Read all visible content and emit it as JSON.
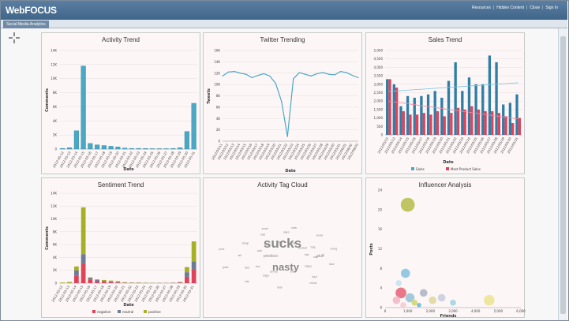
{
  "app": {
    "logo": "WebFOCUS",
    "tab": "Social Media Analytics",
    "links": [
      "Resources",
      "Hidden Content",
      "Close",
      "Sign In"
    ]
  },
  "colors": {
    "teal": "#4aa8c5",
    "blue": "#2f7ea6",
    "red": "#e0425a",
    "olive": "#a5b024",
    "slate": "#6d7b95",
    "header": "#4a6f93"
  },
  "panels": {
    "activity": {
      "title": "Activity Trend"
    },
    "twitter": {
      "title": "Twitter Trending"
    },
    "sales": {
      "title": "Sales Trend"
    },
    "sentiment": {
      "title": "Sentiment Trend"
    },
    "tagcloud": {
      "title": "Activity Tag Cloud"
    },
    "influencer": {
      "title": "Influencer Analysis"
    }
  },
  "chart_data": [
    {
      "id": "activity",
      "type": "bar",
      "title": "Activity Trend",
      "xlabel": "Date",
      "ylabel": "Comments",
      "ylim": [
        0,
        14000
      ],
      "yticks": [
        "0",
        "2K",
        "4K",
        "6K",
        "8K",
        "10K",
        "12K",
        "14K"
      ],
      "categories": [
        "2012-05-12",
        "2012-05-13",
        "2012-05-14",
        "2012-05-15",
        "2012-05-16",
        "2012-05-17",
        "2012-05-18",
        "2012-05-19",
        "2012-05-20",
        "2012-05-21",
        "2012-05-22",
        "2012-05-23",
        "2012-05-24",
        "2012-05-25",
        "2012-05-26",
        "2012-05-27",
        "2012-05-28",
        "2012-05-29",
        "2012-05-30",
        "2012-05-31"
      ],
      "values": [
        100,
        200,
        2600,
        11800,
        800,
        600,
        500,
        400,
        300,
        150,
        100,
        100,
        80,
        60,
        60,
        60,
        80,
        200,
        2500,
        6500
      ]
    },
    {
      "id": "twitter",
      "type": "line",
      "title": "Twitter Trending",
      "xlabel": "Date",
      "ylabel": "Tweets",
      "ylim": [
        0,
        16000
      ],
      "yticks": [
        "0",
        "2K",
        "4K",
        "6K",
        "8K",
        "10K",
        "12K",
        "14K",
        "16K"
      ],
      "categories": [
        "2012/05/11",
        "2012/05/12",
        "2012/05/13",
        "2012/05/14",
        "2012/05/15",
        "2012/05/16",
        "2012/05/17",
        "2012/05/18",
        "2012/05/19",
        "2012/05/20",
        "2012/05/21",
        "2012/05/22",
        "2012/05/23",
        "2012/05/24",
        "2012/05/25",
        "2012/05/26",
        "2012/05/27",
        "2012/05/28",
        "2012/05/29",
        "2012/05/30",
        "2012/05/31",
        "2012/06/01",
        "2012/06/02",
        "2012/06/03"
      ],
      "values": [
        11500,
        12200,
        12300,
        12000,
        11800,
        11200,
        11600,
        11900,
        11500,
        10200,
        7000,
        800,
        11000,
        12100,
        11800,
        11500,
        11900,
        12100,
        11800,
        11700,
        12300,
        12100,
        11600,
        11200
      ]
    },
    {
      "id": "sales",
      "type": "bar",
      "title": "Sales Trend",
      "xlabel": "Date",
      "ylim": [
        0,
        5000
      ],
      "yticks": [
        "0",
        "500",
        "1,000",
        "1,500",
        "2,000",
        "2,500",
        "3,000",
        "3,500",
        "4,000",
        "4,500",
        "5,000"
      ],
      "categories": [
        "2012/05/12",
        "2012/05/13",
        "2012/05/14",
        "2012/05/15",
        "2012/05/16",
        "2012/05/17",
        "2012/05/18",
        "2012/05/19",
        "2012/05/20",
        "2012/05/21",
        "2012/05/22",
        "2012/05/23",
        "2012/05/24",
        "2012/05/25",
        "2012/05/26",
        "2012/05/27",
        "2012/05/28",
        "2012/05/29",
        "2012/05/30",
        "2012/05/31"
      ],
      "series": [
        {
          "name": "Sales",
          "values": [
            3300,
            3000,
            1700,
            2300,
            2200,
            2300,
            2400,
            2600,
            2200,
            3200,
            4300,
            2600,
            3400,
            3000,
            3000,
            4700,
            4300,
            1800,
            1900,
            2400
          ]
        },
        {
          "name": "Most Product Sales",
          "values": [
            3300,
            2800,
            1400,
            1200,
            1200,
            1300,
            1200,
            1400,
            1100,
            1300,
            1600,
            1500,
            1700,
            1500,
            1400,
            1400,
            1300,
            1100,
            700,
            1000
          ]
        }
      ]
    },
    {
      "id": "sentiment",
      "type": "bar",
      "title": "Sentiment Trend",
      "xlabel": "Date",
      "ylabel": "Comments",
      "ylim": [
        0,
        14000
      ],
      "yticks": [
        "0",
        "2K",
        "4K",
        "6K",
        "8K",
        "10K",
        "12K",
        "14K"
      ],
      "categories": [
        "2012-05-12",
        "2012-05-13",
        "2012-05-14",
        "2012-05-15",
        "2012-05-16",
        "2012-05-17",
        "2012-05-18",
        "2012-05-19",
        "2012-05-20",
        "2012-05-21",
        "2012-05-22",
        "2012-05-23",
        "2012-05-24",
        "2012-05-25",
        "2012-05-26",
        "2012-05-27",
        "2012-05-28",
        "2012-05-29",
        "2012-05-30",
        "2012-05-31"
      ],
      "series": [
        {
          "name": "negative",
          "values": [
            0,
            0,
            1200,
            3000,
            500,
            300,
            200,
            150,
            100,
            50,
            30,
            30,
            20,
            20,
            20,
            20,
            30,
            80,
            1000,
            2200
          ]
        },
        {
          "name": "neutral",
          "values": [
            0,
            0,
            800,
            1500,
            300,
            200,
            150,
            100,
            80,
            40,
            30,
            30,
            20,
            20,
            20,
            20,
            30,
            60,
            700,
            1200
          ]
        },
        {
          "name": "positive",
          "values": [
            100,
            200,
            600,
            7300,
            100,
            100,
            150,
            150,
            120,
            60,
            40,
            40,
            40,
            20,
            20,
            20,
            20,
            60,
            800,
            3100
          ]
        }
      ]
    },
    {
      "id": "influencer",
      "type": "scatter",
      "title": "Influencer Analysis",
      "xlabel": "Friends",
      "ylabel": "Posts",
      "xlim": [
        0,
        6000
      ],
      "ylim": [
        0,
        24
      ],
      "xticks": [
        "0",
        "1,000",
        "2,000",
        "3,000",
        "4,000",
        "5,000",
        "6,000"
      ],
      "yticks": [
        "0",
        "4",
        "8",
        "12",
        "16",
        "20",
        "24"
      ],
      "points": [
        {
          "x": 1000,
          "y": 21,
          "r": 9,
          "color": "#a5b024"
        },
        {
          "x": 900,
          "y": 7,
          "r": 6,
          "color": "#66b6d8"
        },
        {
          "x": 1700,
          "y": 3,
          "r": 5,
          "color": "#9aa5b8"
        },
        {
          "x": 700,
          "y": 3,
          "r": 7,
          "color": "#e0425a"
        },
        {
          "x": 500,
          "y": 1.5,
          "r": 5,
          "color": "#f0a8b8"
        },
        {
          "x": 1100,
          "y": 2,
          "r": 6,
          "color": "#7fb7d1"
        },
        {
          "x": 1300,
          "y": 1,
          "r": 4,
          "color": "#c8d04e"
        },
        {
          "x": 600,
          "y": 5,
          "r": 4,
          "color": "#b7dde9"
        },
        {
          "x": 2100,
          "y": 1.5,
          "r": 5,
          "color": "#d9d08a"
        },
        {
          "x": 2500,
          "y": 2,
          "r": 5,
          "color": "#b9c3d8"
        },
        {
          "x": 3000,
          "y": 1,
          "r": 4,
          "color": "#8ccbe0"
        },
        {
          "x": 4600,
          "y": 1.5,
          "r": 7,
          "color": "#e6e07a"
        },
        {
          "x": 800,
          "y": 0.5,
          "r": 4,
          "color": "#f2c1cc"
        },
        {
          "x": 1500,
          "y": 0.5,
          "r": 3,
          "color": "#4aa8c5"
        }
      ]
    }
  ],
  "tagcloud": {
    "words": [
      "sucks",
      "nasty",
      "stuff",
      "prodsco",
      "bad",
      "loss",
      "sales",
      "loyal",
      "price",
      "product",
      "service",
      "rude",
      "slow",
      "great",
      "cost",
      "love",
      "cheap",
      "wrong",
      "late",
      "broke",
      "happy",
      "fail",
      "worse",
      "deal",
      "store",
      "staff",
      "item",
      "order",
      "refund",
      "wait",
      "help",
      "angry",
      "smart"
    ]
  }
}
